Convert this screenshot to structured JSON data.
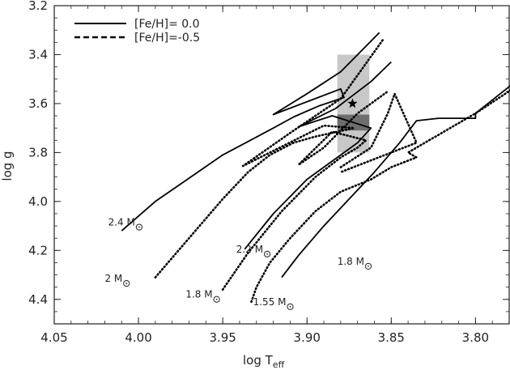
{
  "chart_data": {
    "type": "line",
    "title": "",
    "xlabel": "log T",
    "xlabel_sub": "eff",
    "ylabel": "log g",
    "xlim": [
      4.05,
      3.78
    ],
    "ylim": [
      3.2,
      4.5
    ],
    "x_ticks": [
      "4.05",
      "4.00",
      "3.95",
      "3.90",
      "3.85",
      "3.80"
    ],
    "x_tick_values": [
      4.05,
      4.0,
      3.95,
      3.9,
      3.85,
      3.8
    ],
    "y_ticks": [
      "3.2",
      "3.4",
      "3.6",
      "3.8",
      "4.0",
      "4.2",
      "4.4"
    ],
    "y_tick_values": [
      3.2,
      3.4,
      3.6,
      3.8,
      4.0,
      4.2,
      4.4
    ],
    "grid": false,
    "legend_position": "top-left",
    "legend": [
      {
        "label": "[Fe/H]= 0.0",
        "style": "solid"
      },
      {
        "label": "[Fe/H]=-0.5",
        "style": "dashed"
      }
    ],
    "boxes": [
      {
        "name": "outer-box",
        "x": [
          3.863,
          3.882
        ],
        "y": [
          3.4,
          3.8
        ],
        "color": "#c8c8c8"
      },
      {
        "name": "inner-box",
        "x": [
          3.863,
          3.882
        ],
        "y": [
          3.645,
          3.71
        ],
        "color": "#6e6e6e"
      }
    ],
    "star": {
      "x": 3.873,
      "y": 3.6
    },
    "series": [
      {
        "label": "2.4 M",
        "label_pos": [
          4.018,
          4.085
        ],
        "style": "solid",
        "x": [
          4.01,
          3.99,
          3.97,
          3.95,
          3.935,
          3.92,
          3.908,
          3.893,
          3.878,
          3.88,
          3.92,
          3.9,
          3.88,
          3.857
        ],
        "y": [
          4.12,
          4.0,
          3.905,
          3.81,
          3.755,
          3.7,
          3.655,
          3.61,
          3.575,
          3.54,
          3.645,
          3.56,
          3.47,
          3.31
        ]
      },
      {
        "label": "2 M",
        "label_pos": [
          4.02,
          4.315
        ],
        "style": "dotted",
        "x": [
          3.99,
          3.97,
          3.95,
          3.935,
          3.922,
          3.908,
          3.895,
          3.882,
          3.872,
          3.89,
          3.938,
          3.91,
          3.88,
          3.855
        ],
        "y": [
          4.31,
          4.15,
          3.99,
          3.88,
          3.81,
          3.76,
          3.735,
          3.715,
          3.7,
          3.69,
          3.855,
          3.72,
          3.58,
          3.34
        ]
      },
      {
        "label": "2.2 M",
        "label_pos": [
          3.942,
          4.195
        ],
        "style": "solid",
        "x": [
          3.937,
          3.92,
          3.9,
          3.88,
          3.87,
          3.862,
          3.885,
          3.905,
          3.883,
          3.862,
          3.85
        ],
        "y": [
          4.195,
          4.05,
          3.91,
          3.81,
          3.76,
          3.7,
          3.65,
          3.695,
          3.62,
          3.51,
          3.43
        ]
      },
      {
        "label": "1.8 M",
        "label_pos": [
          3.972,
          4.38
        ],
        "style": "dotted",
        "x": [
          3.95,
          3.935,
          3.915,
          3.895,
          3.88,
          3.87,
          3.865,
          3.885,
          3.905,
          3.89,
          3.87,
          3.852
        ],
        "y": [
          4.36,
          4.21,
          4.04,
          3.9,
          3.82,
          3.78,
          3.75,
          3.715,
          3.85,
          3.78,
          3.64,
          3.55
        ]
      },
      {
        "label": "1.8 M",
        "label_pos": [
          3.882,
          4.245
        ],
        "style": "solid",
        "x": [
          3.915,
          3.905,
          3.89,
          3.875,
          3.86,
          3.845,
          3.835,
          3.822,
          3.8,
          3.8,
          3.778
        ],
        "y": [
          4.31,
          4.22,
          4.1,
          3.99,
          3.88,
          3.76,
          3.67,
          3.66,
          3.66,
          3.64,
          3.52
        ]
      },
      {
        "label": "1.55 M",
        "label_pos": [
          3.932,
          4.41
        ],
        "style": "dotted",
        "x": [
          3.933,
          3.93,
          3.922,
          3.91,
          3.895,
          3.88,
          3.862,
          3.85,
          3.835,
          3.84,
          3.82,
          3.8,
          3.778
        ],
        "y": [
          4.41,
          4.35,
          4.25,
          4.15,
          4.04,
          3.96,
          3.91,
          3.86,
          3.82,
          3.8,
          3.72,
          3.64,
          3.54
        ]
      },
      {
        "label": "",
        "style": "dotted",
        "x": [
          3.88,
          3.862,
          3.852,
          3.848,
          3.835,
          3.88
        ],
        "y": [
          3.86,
          3.78,
          3.64,
          3.56,
          3.76,
          3.88
        ]
      }
    ]
  }
}
